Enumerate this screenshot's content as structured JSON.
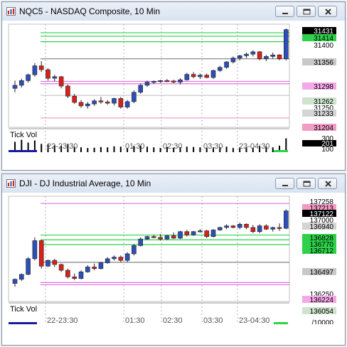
{
  "windows": [
    {
      "title": "NQC5 - NASDAQ Composite, 10 Min",
      "indicator_label": "Tick Vol",
      "time_labels": [
        "22-23:30",
        "01:30",
        "02:30",
        "03:30",
        "23-04:30"
      ],
      "price_tags": [
        {
          "label": "31431",
          "fg": "#ffffff",
          "bg": "#000000"
        },
        {
          "label": "31414",
          "fg": "#000000",
          "bg": "#2ed14a"
        },
        {
          "label": "31400",
          "fg": "#000000",
          "bg": ""
        },
        {
          "label": "31356",
          "fg": "#000000",
          "bg": "#c8c8c8"
        },
        {
          "label": "31298",
          "fg": "#000000",
          "bg": "#f4a8e8"
        },
        {
          "label": "31262",
          "fg": "#000000",
          "bg": "#cfe3cf"
        },
        {
          "label": "31250",
          "fg": "#000000",
          "bg": ""
        },
        {
          "label": "31233",
          "fg": "#000000",
          "bg": "#d4d4d4"
        },
        {
          "label": "31204",
          "fg": "#000000",
          "bg": "#f09cc4"
        }
      ],
      "vol_tags": [
        {
          "label": "300",
          "fg": "#000000",
          "bg": ""
        },
        {
          "label": "201",
          "fg": "#ffffff",
          "bg": "#000000"
        },
        {
          "label": "100",
          "fg": "#000000",
          "bg": ""
        }
      ],
      "chart_data": {
        "type": "candlestick",
        "ylim": [
          31180,
          31445
        ],
        "candles": [
          [
            31280,
            31300,
            31270,
            31288
          ],
          [
            31288,
            31305,
            31282,
            31300
          ],
          [
            31300,
            31318,
            31295,
            31315
          ],
          [
            31315,
            31345,
            31310,
            31338
          ],
          [
            31338,
            31350,
            31322,
            31328
          ],
          [
            31328,
            31332,
            31300,
            31306
          ],
          [
            31306,
            31315,
            31298,
            31310
          ],
          [
            31310,
            31312,
            31280,
            31286
          ],
          [
            31286,
            31290,
            31255,
            31260
          ],
          [
            31260,
            31266,
            31240,
            31244
          ],
          [
            31244,
            31250,
            31230,
            31235
          ],
          [
            31235,
            31245,
            31228,
            31240
          ],
          [
            31240,
            31252,
            31235,
            31248
          ],
          [
            31248,
            31258,
            31240,
            31245
          ],
          [
            31245,
            31250,
            31238,
            31242
          ],
          [
            31242,
            31256,
            31236,
            31254
          ],
          [
            31254,
            31258,
            31228,
            31232
          ],
          [
            31232,
            31250,
            31228,
            31246
          ],
          [
            31246,
            31275,
            31242,
            31270
          ],
          [
            31270,
            31292,
            31266,
            31288
          ],
          [
            31288,
            31300,
            31284,
            31296
          ],
          [
            31296,
            31300,
            31292,
            31298
          ],
          [
            31298,
            31302,
            31294,
            31300
          ],
          [
            31300,
            31304,
            31296,
            31299
          ],
          [
            31299,
            31302,
            31293,
            31296
          ],
          [
            31296,
            31306,
            31290,
            31302
          ],
          [
            31302,
            31320,
            31300,
            31316
          ],
          [
            31316,
            31322,
            31306,
            31310
          ],
          [
            31310,
            31318,
            31304,
            31314
          ],
          [
            31314,
            31318,
            31306,
            31308
          ],
          [
            31308,
            31328,
            31304,
            31326
          ],
          [
            31326,
            31338,
            31322,
            31334
          ],
          [
            31334,
            31350,
            31330,
            31348
          ],
          [
            31348,
            31362,
            31344,
            31358
          ],
          [
            31358,
            31366,
            31352,
            31364
          ],
          [
            31364,
            31372,
            31358,
            31368
          ],
          [
            31368,
            31378,
            31362,
            31374
          ],
          [
            31374,
            31376,
            31352,
            31356
          ],
          [
            31356,
            31366,
            31350,
            31362
          ],
          [
            31362,
            31372,
            31356,
            31366
          ],
          [
            31366,
            31368,
            31352,
            31356
          ],
          [
            31356,
            31434,
            31352,
            31431
          ]
        ],
        "volume": [
          150,
          180,
          140,
          170,
          120,
          110,
          100,
          90,
          120,
          80,
          70,
          60,
          65,
          75,
          70,
          85,
          80,
          60,
          90,
          95,
          80,
          70,
          60,
          75,
          65,
          70,
          80,
          75,
          70,
          65,
          70,
          75,
          80,
          60,
          70,
          75,
          65,
          90,
          85,
          70,
          95,
          201
        ],
        "volume_ylim": [
          0,
          320
        ],
        "levels": [
          {
            "value": 31414,
            "color": "#2ed14a"
          },
          {
            "value": 31400,
            "color": "#2ed14a"
          },
          {
            "value": 31423,
            "color": "#2ed14a"
          },
          {
            "value": 31356,
            "color": "#808080"
          },
          {
            "value": 31298,
            "color": "#e070e0"
          },
          {
            "value": 31292,
            "color": "#e070e0"
          },
          {
            "value": 31262,
            "color": "#c8c8c8"
          },
          {
            "value": 31204,
            "color": "#f0a0d0"
          }
        ]
      }
    },
    {
      "title": "DJI - DJ Industrial Average, 10 Min",
      "indicator_label": "Tick Vol",
      "time_labels": [
        "22-23:30",
        "01:30",
        "02:30",
        "03:30",
        "23-04:30"
      ],
      "price_tags": [
        {
          "label": "137258",
          "fg": "#000000",
          "bg": ""
        },
        {
          "label": "137213",
          "fg": "#000000",
          "bg": "#f09cc4"
        },
        {
          "label": "137122",
          "fg": "#ffffff",
          "bg": "#000000"
        },
        {
          "label": "137000",
          "fg": "#000000",
          "bg": ""
        },
        {
          "label": "136940",
          "fg": "#000000",
          "bg": "#d4d4d4"
        },
        {
          "label": "136828",
          "fg": "#000000",
          "bg": "#2ed14a"
        },
        {
          "label": "136770",
          "fg": "#000000",
          "bg": "#2ed14a"
        },
        {
          "label": "136712",
          "fg": "#000000",
          "bg": "#2ed14a"
        },
        {
          "label": "136497",
          "fg": "#000000",
          "bg": "#c8c8c8"
        },
        {
          "label": "136250",
          "fg": "#000000",
          "bg": ""
        },
        {
          "label": "136224",
          "fg": "#000000",
          "bg": "#f4a8e8"
        },
        {
          "label": "136054",
          "fg": "#000000",
          "bg": "#cfe3cf"
        }
      ],
      "vol_tags": [
        {
          "label": "/10000",
          "fg": "#000000",
          "bg": ""
        }
      ],
      "chart_data": {
        "type": "candlestick",
        "ylim": [
          136020,
          137300
        ],
        "candles": [
          [
            136240,
            136300,
            136200,
            136290
          ],
          [
            136290,
            136360,
            136270,
            136350
          ],
          [
            136350,
            136560,
            136340,
            136540
          ],
          [
            136540,
            136800,
            136520,
            136760
          ],
          [
            136760,
            136770,
            136420,
            136450
          ],
          [
            136450,
            136530,
            136440,
            136520
          ],
          [
            136520,
            136540,
            136440,
            136470
          ],
          [
            136470,
            136480,
            136380,
            136400
          ],
          [
            136400,
            136420,
            136300,
            136320
          ],
          [
            136320,
            136360,
            136280,
            136300
          ],
          [
            136300,
            136400,
            136290,
            136380
          ],
          [
            136380,
            136460,
            136370,
            136440
          ],
          [
            136440,
            136480,
            136400,
            136420
          ],
          [
            136420,
            136500,
            136410,
            136490
          ],
          [
            136490,
            136560,
            136480,
            136540
          ],
          [
            136540,
            136580,
            136520,
            136560
          ],
          [
            136560,
            136580,
            136500,
            136520
          ],
          [
            136520,
            136620,
            136500,
            136600
          ],
          [
            136600,
            136720,
            136580,
            136700
          ],
          [
            136700,
            136800,
            136690,
            136780
          ],
          [
            136780,
            136820,
            136770,
            136810
          ],
          [
            136810,
            136830,
            136790,
            136800
          ],
          [
            136800,
            136840,
            136760,
            136780
          ],
          [
            136780,
            136830,
            136770,
            136820
          ],
          [
            136820,
            136860,
            136780,
            136790
          ],
          [
            136790,
            136880,
            136780,
            136870
          ],
          [
            136870,
            136890,
            136810,
            136830
          ],
          [
            136830,
            136880,
            136820,
            136870
          ],
          [
            136870,
            136900,
            136860,
            136880
          ],
          [
            136880,
            136890,
            136790,
            136810
          ],
          [
            136810,
            136900,
            136800,
            136890
          ],
          [
            136890,
            136930,
            136880,
            136920
          ],
          [
            136920,
            136960,
            136900,
            136940
          ],
          [
            136940,
            136950,
            136910,
            136920
          ],
          [
            136920,
            136980,
            136900,
            136960
          ],
          [
            136960,
            136970,
            136900,
            136920
          ],
          [
            136920,
            136950,
            136850,
            136870
          ],
          [
            136870,
            136960,
            136850,
            136940
          ],
          [
            136940,
            136960,
            136890,
            136900
          ],
          [
            136900,
            136930,
            136870,
            136920
          ],
          [
            136920,
            136970,
            136880,
            136910
          ],
          [
            136910,
            137140,
            136900,
            137122
          ]
        ],
        "volume": [
          0,
          0,
          0,
          0,
          0,
          0,
          0,
          0,
          0,
          0,
          0,
          0,
          0,
          0,
          0,
          0,
          0,
          0,
          0,
          0,
          0,
          0,
          0,
          0,
          0,
          0,
          0,
          0,
          0,
          0,
          0,
          0,
          0,
          0,
          0,
          0,
          0,
          0,
          0,
          0,
          0,
          0
        ],
        "volume_ylim": [
          0,
          10000
        ],
        "levels": [
          {
            "value": 137213,
            "color": "#e070e0"
          },
          {
            "value": 136828,
            "color": "#2ed14a"
          },
          {
            "value": 136770,
            "color": "#2ed14a"
          },
          {
            "value": 136712,
            "color": "#2ed14a"
          },
          {
            "value": 136497,
            "color": "#808080"
          },
          {
            "value": 136250,
            "color": "#e070e0"
          },
          {
            "value": 136224,
            "color": "#e070e0"
          }
        ]
      }
    }
  ],
  "colors": {
    "up_candle": "#2c4fb8",
    "down_candle": "#d8201c",
    "grid": "#b0b0b0",
    "volume_bar": "#000000",
    "volume_base": "#1a1a9a"
  },
  "buttons": {
    "minimize": "minimize-icon",
    "restore": "restore-icon",
    "close": "close-icon"
  }
}
